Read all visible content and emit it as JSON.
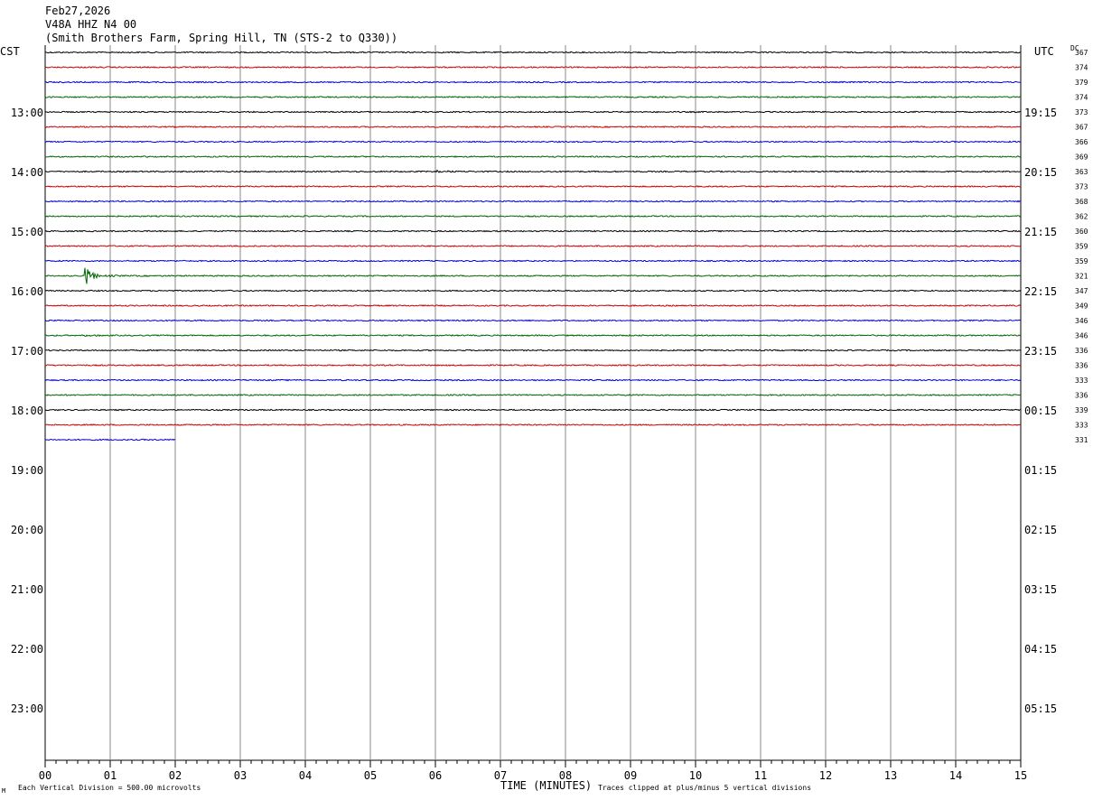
{
  "header": {
    "date": "Feb27,2026",
    "channel": "V48A HHZ N4 00",
    "station": "(Smith Brothers Farm, Spring Hill, TN (STS-2 to Q330))",
    "left_tz": "CST",
    "right_tz": "UTC",
    "dc_label": "DC"
  },
  "footer": {
    "scale": "Each Vertical Division =  500.00 microvolts",
    "xlabel": "TIME (MINUTES)",
    "clip": "Traces clipped at plus/minus 5 vertical divisions",
    "corner_mark": "M"
  },
  "colors": {
    "trace_cycle": [
      "#000000",
      "#cc0000",
      "#0000cc",
      "#006600"
    ],
    "grid": "#888888",
    "axis": "#000000"
  },
  "chart_data": {
    "type": "line",
    "title": "V48A HHZ N4 00",
    "xlabel": "TIME (MINUTES)",
    "ylabel": "",
    "xlim": [
      0,
      15
    ],
    "x_ticks": [
      "00",
      "01",
      "02",
      "03",
      "04",
      "05",
      "06",
      "07",
      "08",
      "09",
      "10",
      "11",
      "12",
      "13",
      "14",
      "15"
    ],
    "left_hour_labels": [
      "13:00",
      "14:00",
      "15:00",
      "16:00",
      "17:00",
      "18:00",
      "19:00",
      "20:00",
      "21:00",
      "22:00",
      "23:00"
    ],
    "right_hour_labels": [
      "19:15",
      "20:15",
      "21:15",
      "22:15",
      "23:15",
      "00:15",
      "01:15",
      "02:15",
      "03:15",
      "04:15",
      "05:15"
    ],
    "rows_per_hour": 4,
    "minutes_per_row": 15,
    "dc_offsets": [
      367,
      374,
      379,
      374,
      373,
      367,
      366,
      369,
      363,
      373,
      368,
      362,
      360,
      359,
      359,
      321,
      347,
      349,
      346,
      346,
      336,
      336,
      333,
      336,
      339,
      333,
      331
    ],
    "trace_count": 27,
    "last_trace_end_minute": 2.0,
    "events": [
      {
        "row": 8,
        "minute": 6.0,
        "duration_min": 0.5,
        "amp_div": 0.4
      },
      {
        "row": 14,
        "minute": 3.55,
        "duration_min": 0.12,
        "amp_div": 0.7
      },
      {
        "row": 15,
        "minute": 0.6,
        "duration_min": 0.35,
        "amp_div": 4.0
      },
      {
        "row": 15,
        "minute": 1.0,
        "duration_min": 0.4,
        "amp_div": 0.3
      },
      {
        "row": 19,
        "minute": 0.6,
        "duration_min": 0.6,
        "amp_div": 0.3
      },
      {
        "row": 7,
        "minute": 1.5,
        "duration_min": 0.5,
        "amp_div": 0.25
      },
      {
        "row": 12,
        "minute": 11.3,
        "duration_min": 0.4,
        "amp_div": 0.2
      }
    ]
  }
}
